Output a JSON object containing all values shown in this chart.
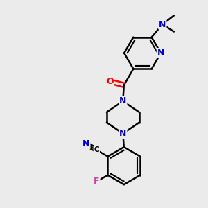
{
  "background_color": "#ebebeb",
  "bond_color": "#000000",
  "bond_width": 1.8,
  "atom_colors": {
    "N": "#0000cc",
    "O": "#ff0000",
    "F": "#cc44aa",
    "C": "#000000"
  },
  "font_size": 8,
  "figsize": [
    3.0,
    3.0
  ],
  "dpi": 100,
  "xlim": [
    0,
    10
  ],
  "ylim": [
    0,
    10
  ]
}
